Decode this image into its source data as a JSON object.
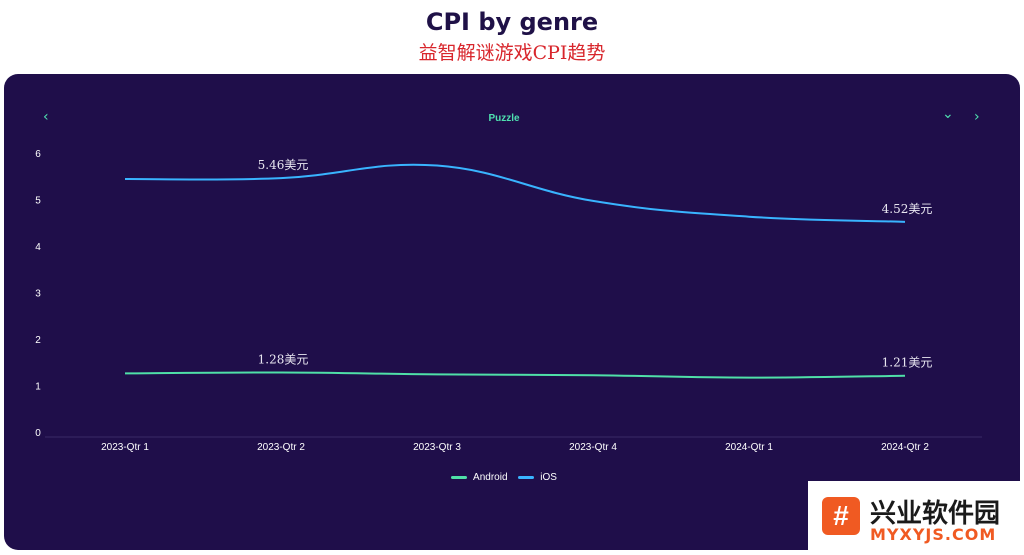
{
  "header": {
    "title": "CPI by genre",
    "subtitle": "益智解谜游戏CPI趋势"
  },
  "nav": {
    "prev_icon": "‹",
    "genre_label": "Puzzle",
    "dropdown_icon": "⌄",
    "next_icon": "›"
  },
  "colors": {
    "background": "#1f0e4a",
    "android": "#4fe0a8",
    "ios": "#39b4ff"
  },
  "chart_data": {
    "type": "line",
    "categories": [
      "2023-Qtr 1",
      "2023-Qtr 2",
      "2023-Qtr 3",
      "2023-Qtr 4",
      "2024-Qtr 1",
      "2024-Qtr 2"
    ],
    "yticks": [
      "0",
      "1",
      "2",
      "3",
      "4",
      "5",
      "6"
    ],
    "ylim": [
      0,
      6
    ],
    "grid": false,
    "legend": "bottom",
    "series": [
      {
        "name": "Android",
        "values": [
          1.26,
          1.28,
          1.24,
          1.22,
          1.17,
          1.21
        ],
        "color": "#4fe0a8",
        "labels": [
          null,
          "1.28美元",
          null,
          null,
          null,
          "1.21美元"
        ]
      },
      {
        "name": "iOS",
        "values": [
          5.44,
          5.46,
          5.73,
          4.97,
          4.63,
          4.52
        ],
        "color": "#39b4ff",
        "labels": [
          null,
          "5.46美元",
          null,
          null,
          null,
          "4.52美元"
        ]
      }
    ]
  },
  "watermark": {
    "logo_glyph": "#",
    "cn": "兴业软件园",
    "en": "MYXYJS.COM"
  }
}
